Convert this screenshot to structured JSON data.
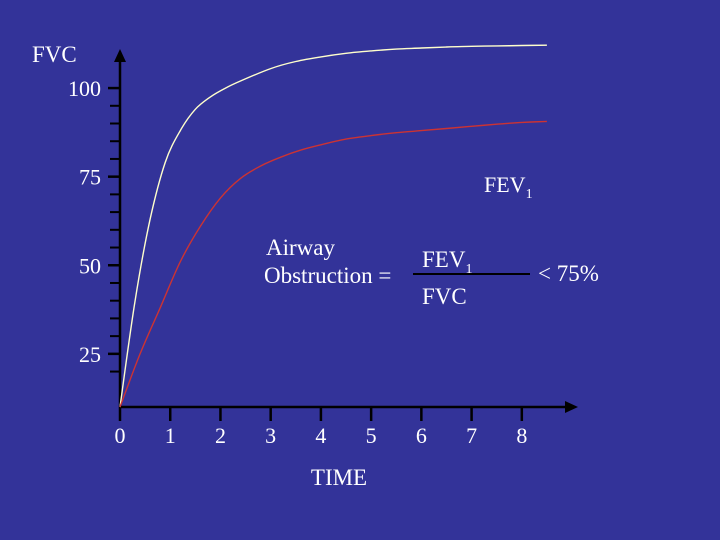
{
  "colors": {
    "background": "#333399",
    "axis": "#000000",
    "text": "#ffffff",
    "fvc_curve": "#ffffcc",
    "fev1_curve": "#cc3333"
  },
  "chart_data": {
    "type": "line",
    "ylabel": "FVC",
    "xlabel": "TIME",
    "x_ticks": [
      0,
      1,
      2,
      3,
      4,
      5,
      6,
      7,
      8
    ],
    "y_ticks": [
      25,
      50,
      75,
      100
    ],
    "x_tick_labels": [
      "0",
      "1",
      "2",
      "3",
      "4",
      "5",
      "6",
      "7",
      "8"
    ],
    "y_tick_labels": [
      "25",
      "50",
      "75",
      "100"
    ],
    "xlim": [
      0,
      8.8
    ],
    "ylim": [
      10,
      113
    ],
    "grid": false,
    "series": [
      {
        "name": "FVC",
        "color": "#ffffcc",
        "x": [
          0,
          0.3,
          0.6,
          0.9,
          1.2,
          1.5,
          1.8,
          2.1,
          2.4,
          3.0,
          3.5,
          4.0,
          4.5,
          5.0,
          5.5,
          6.0,
          6.5,
          7.0,
          7.5,
          8.0,
          8.5
        ],
        "y": [
          10,
          40,
          63,
          79,
          88,
          94,
          97.5,
          100,
          102,
          105.5,
          107.5,
          108.8,
          109.8,
          110.5,
          111,
          111.3,
          111.6,
          111.8,
          111.9,
          112,
          112.1
        ]
      },
      {
        "name": "FEV1",
        "color": "#cc3333",
        "x": [
          0,
          0.4,
          0.8,
          1.2,
          1.6,
          2.0,
          2.4,
          2.8,
          3.2,
          3.6,
          4.0,
          4.5,
          5.0,
          5.5,
          6.0,
          6.5,
          7.0,
          7.5,
          8.0,
          8.5
        ],
        "y": [
          10,
          25,
          38,
          51,
          61,
          69,
          74.5,
          78,
          80.5,
          82.5,
          84,
          85.6,
          86.6,
          87.4,
          88,
          88.6,
          89.2,
          89.8,
          90.3,
          90.6
        ]
      }
    ]
  },
  "labels": {
    "fev1_label": "FEV",
    "fev1_sub": "1",
    "formula_line1": "Airway",
    "formula_line2": "Obstruction =",
    "formula_num": "FEV",
    "formula_num_sub": "1",
    "formula_den": "FVC",
    "formula_result": "< 75%"
  }
}
